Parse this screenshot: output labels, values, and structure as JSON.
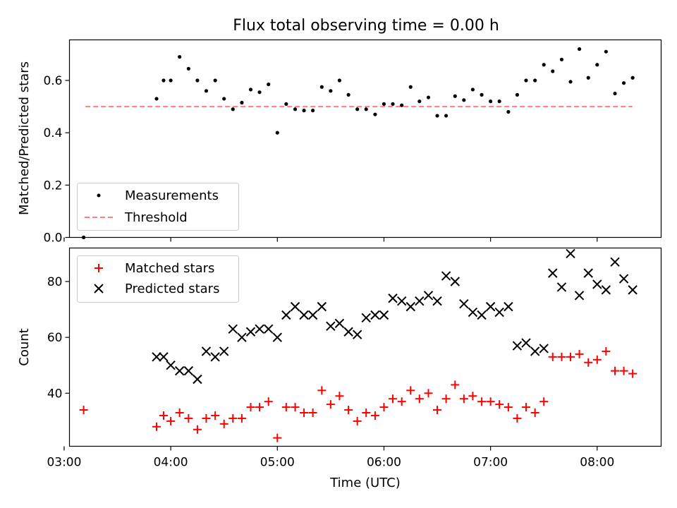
{
  "title": "Flux total observing time = 0.00 h",
  "colors": {
    "threshold": "#ff7f7f",
    "matched": "#ff0000",
    "predicted": "#000000",
    "measurement": "#000000"
  },
  "chart_data": [
    {
      "type": "scatter",
      "ylabel": "Matched/Predicted stars",
      "xlim": [
        3.05,
        8.6
      ],
      "ylim": [
        0.0,
        0.755
      ],
      "yticks": [
        0.0,
        0.2,
        0.4,
        0.6
      ],
      "ytick_labels": [
        "0.0",
        "0.2",
        "0.4",
        "0.6"
      ],
      "legend": {
        "placement": "lower-left",
        "entries": [
          "Measurements",
          "Threshold"
        ]
      },
      "threshold": {
        "value": 0.5,
        "x_range": [
          3.2,
          8.33
        ],
        "style": "dashed"
      },
      "series": [
        {
          "name": "Measurements",
          "x": [
            3.183,
            3.867,
            3.933,
            4.0,
            4.083,
            4.167,
            4.25,
            4.333,
            4.417,
            4.5,
            4.583,
            4.667,
            4.75,
            4.833,
            4.917,
            5.0,
            5.083,
            5.167,
            5.25,
            5.333,
            5.417,
            5.5,
            5.583,
            5.667,
            5.75,
            5.833,
            5.917,
            6.0,
            6.083,
            6.167,
            6.25,
            6.333,
            6.417,
            6.5,
            6.583,
            6.667,
            6.75,
            6.833,
            6.917,
            7.0,
            7.083,
            7.167,
            7.25,
            7.333,
            7.417,
            7.5,
            7.583,
            7.667,
            7.75,
            7.833,
            7.917,
            8.0,
            8.083,
            8.167,
            8.25,
            8.333
          ],
          "y": [
            0.0,
            0.53,
            0.6,
            0.6,
            0.69,
            0.645,
            0.6,
            0.56,
            0.6,
            0.53,
            0.49,
            0.515,
            0.565,
            0.555,
            0.585,
            0.4,
            0.51,
            0.49,
            0.485,
            0.485,
            0.575,
            0.56,
            0.6,
            0.545,
            0.49,
            0.49,
            0.47,
            0.51,
            0.51,
            0.505,
            0.575,
            0.52,
            0.535,
            0.465,
            0.465,
            0.54,
            0.525,
            0.565,
            0.545,
            0.52,
            0.52,
            0.48,
            0.545,
            0.6,
            0.6,
            0.66,
            0.635,
            0.68,
            0.595,
            0.72,
            0.61,
            0.66,
            0.71,
            0.55,
            0.59,
            0.61
          ]
        }
      ]
    },
    {
      "type": "scatter",
      "ylabel": "Count",
      "xlabel": "Time (UTC)",
      "xlim": [
        3.05,
        8.6
      ],
      "ylim": [
        21,
        92
      ],
      "yticks": [
        40,
        60,
        80
      ],
      "ytick_labels": [
        "40",
        "60",
        "80"
      ],
      "xticks": [
        3,
        4,
        5,
        6,
        7,
        8
      ],
      "xtick_labels": [
        "03:00",
        "04:00",
        "05:00",
        "06:00",
        "07:00",
        "08:00"
      ],
      "legend": {
        "placement": "upper-left",
        "entries": [
          "Matched stars",
          "Predicted stars"
        ]
      },
      "series": [
        {
          "name": "Matched stars",
          "marker": "plus",
          "x": [
            3.183,
            3.867,
            3.933,
            4.0,
            4.083,
            4.167,
            4.25,
            4.333,
            4.417,
            4.5,
            4.583,
            4.667,
            4.75,
            4.833,
            4.917,
            5.0,
            5.083,
            5.167,
            5.25,
            5.333,
            5.417,
            5.5,
            5.583,
            5.667,
            5.75,
            5.833,
            5.917,
            6.0,
            6.083,
            6.167,
            6.25,
            6.333,
            6.417,
            6.5,
            6.583,
            6.667,
            6.75,
            6.833,
            6.917,
            7.0,
            7.083,
            7.167,
            7.25,
            7.333,
            7.417,
            7.5,
            7.583,
            7.667,
            7.75,
            7.833,
            7.917,
            8.0,
            8.083,
            8.167,
            8.25,
            8.333
          ],
          "y": [
            34,
            28,
            32,
            30,
            33,
            31,
            27,
            31,
            32,
            29,
            31,
            31,
            35,
            35,
            37,
            24,
            35,
            35,
            33,
            33,
            41,
            36,
            39,
            34,
            30,
            33,
            32,
            35,
            38,
            37,
            41,
            38,
            40,
            34,
            38,
            43,
            38,
            39,
            37,
            37,
            36,
            35,
            31,
            35,
            33,
            37,
            53,
            53,
            53,
            54,
            51,
            52,
            55,
            48,
            48,
            47
          ]
        },
        {
          "name": "Predicted stars",
          "marker": "x",
          "x": [
            3.867,
            3.933,
            4.0,
            4.083,
            4.167,
            4.25,
            4.333,
            4.417,
            4.5,
            4.583,
            4.667,
            4.75,
            4.833,
            4.917,
            5.0,
            5.083,
            5.167,
            5.25,
            5.333,
            5.417,
            5.5,
            5.583,
            5.667,
            5.75,
            5.833,
            5.917,
            6.0,
            6.083,
            6.167,
            6.25,
            6.333,
            6.417,
            6.5,
            6.583,
            6.667,
            6.75,
            6.833,
            6.917,
            7.0,
            7.083,
            7.167,
            7.25,
            7.333,
            7.417,
            7.5,
            7.583,
            7.667,
            7.75,
            7.833,
            7.917,
            8.0,
            8.083,
            8.167,
            8.25,
            8.333
          ],
          "y": [
            53,
            53,
            50,
            48,
            48,
            45,
            55,
            53,
            55,
            63,
            60,
            62,
            63,
            63,
            60,
            68,
            71,
            68,
            68,
            71,
            64,
            65,
            62,
            61,
            67,
            68,
            68,
            74,
            73,
            71,
            73,
            75,
            73,
            82,
            80,
            72,
            69,
            68,
            71,
            69,
            71,
            57,
            58,
            55,
            56,
            83,
            78,
            90,
            75,
            83,
            79,
            77,
            87,
            81,
            77
          ]
        }
      ]
    }
  ]
}
